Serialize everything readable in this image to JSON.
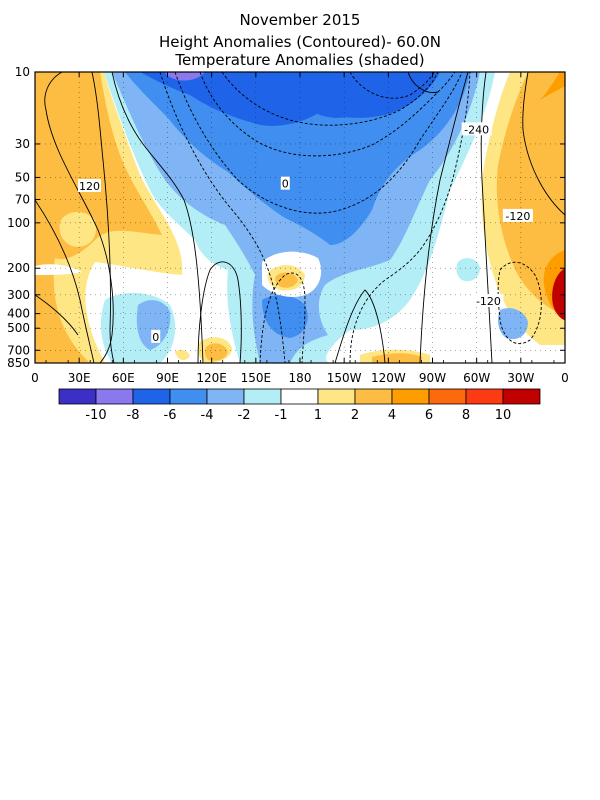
{
  "chart_data": {
    "type": "heatmap",
    "title": "November 2015",
    "subtitle": "Height Anomalies (Contoured)- 60.0N",
    "subtitle2": "Temperature Anomalies (shaded)",
    "xlabel": "",
    "ylabel": "",
    "x_tick_labels": [
      "0",
      "30E",
      "60E",
      "90E",
      "120E",
      "150E",
      "180",
      "150W",
      "120W",
      "90W",
      "60W",
      "30W",
      "0"
    ],
    "x_range_deg_east": [
      0,
      360
    ],
    "y_tick_labels": [
      "10",
      "30",
      "50",
      "70",
      "100",
      "200",
      "300",
      "400",
      "500",
      "700",
      "850"
    ],
    "y_ticks_hPa": [
      10,
      30,
      50,
      70,
      100,
      200,
      300,
      400,
      500,
      700,
      850
    ],
    "y_range_hPa": [
      10,
      850
    ],
    "y_scale": "log",
    "grid": true,
    "contour_labels": [
      {
        "text": "120",
        "lon": 37,
        "p": 57
      },
      {
        "text": "0",
        "lon": 170,
        "p": 55
      },
      {
        "text": "-240",
        "lon": 300,
        "p": 24
      },
      {
        "text": "-120",
        "lon": 328,
        "p": 90
      },
      {
        "text": "-120",
        "lon": 308,
        "p": 330
      },
      {
        "text": "0",
        "lon": 405,
        "p": 290
      },
      {
        "text": "0",
        "lon": 548,
        "p": 65
      },
      {
        "text": "0",
        "lon": 82,
        "p": 570
      }
    ],
    "colorbar": {
      "labels": [
        "-10",
        "-8",
        "-6",
        "-4",
        "-2",
        "-1",
        "1",
        "2",
        "4",
        "6",
        "8",
        "10"
      ],
      "colors": [
        "#3b2fc6",
        "#8a78ee",
        "#1f64e8",
        "#3f8ef0",
        "#7fb5f5",
        "#b3edf6",
        "#ffffff",
        "#fee685",
        "#fdbd42",
        "#fd9d00",
        "#fd6a0d",
        "#fd3a12",
        "#c10000"
      ]
    }
  }
}
